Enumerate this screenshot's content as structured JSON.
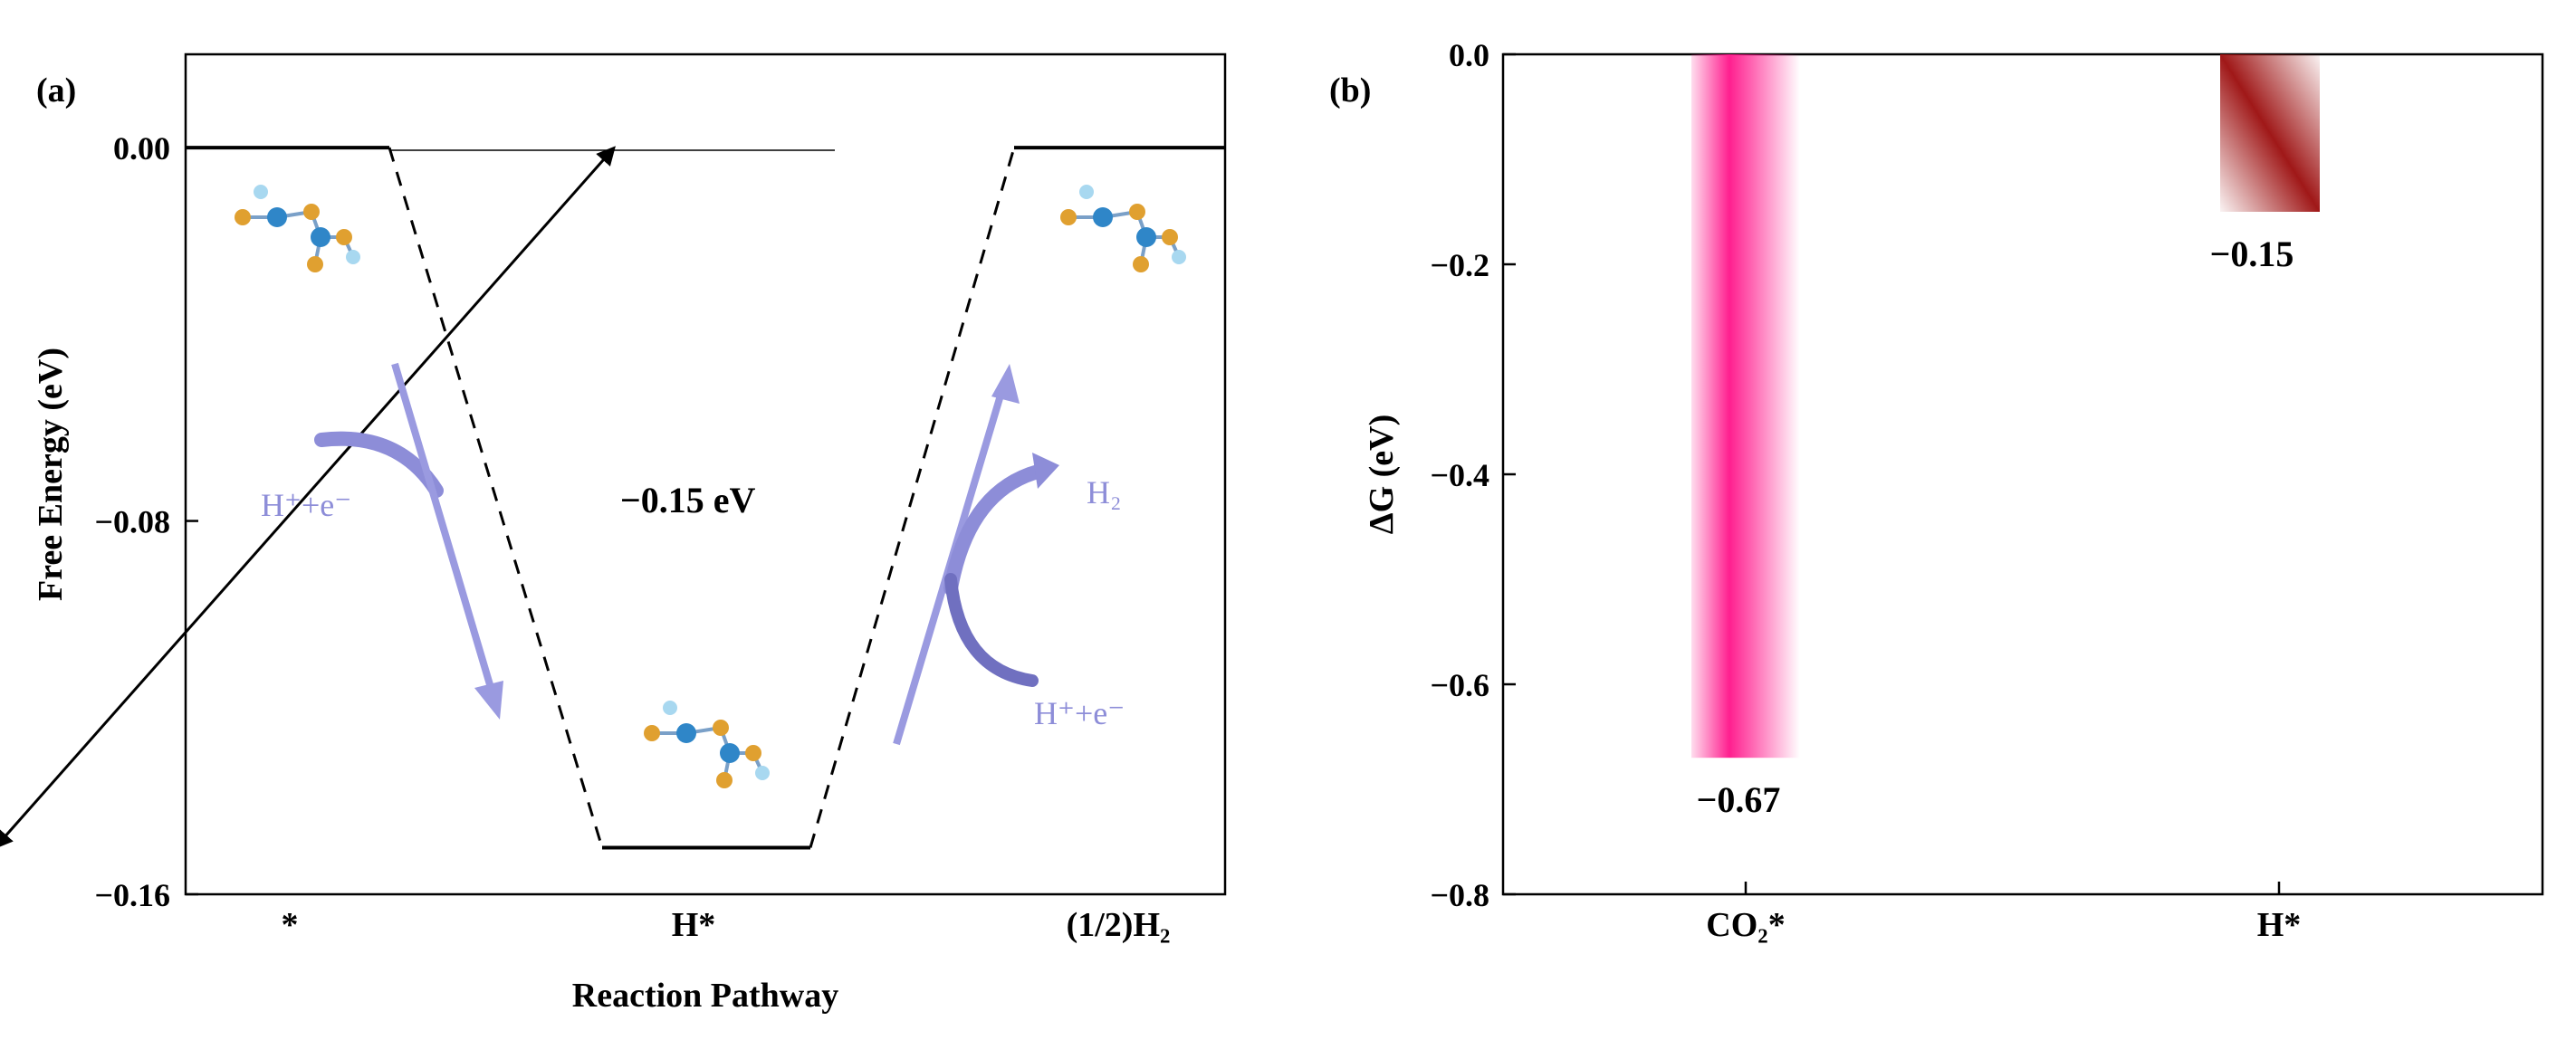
{
  "panel_a": {
    "label": "(a)",
    "arrow_annotation": "−0.15 eV",
    "left_reaction": "H⁺+e⁻",
    "right_reaction_in": "H⁺+e⁻",
    "right_reaction_out": "H₂"
  },
  "panel_b": {
    "label": "(b)"
  },
  "colors": {
    "reaction_arrow": "#9a9ae0",
    "co2_bar": "#ff1f8f",
    "h_bar": "#a01818",
    "atom_gold": "#e0a030",
    "atom_blue": "#2f86c8",
    "atom_light": "#a8d8f0"
  },
  "icons": [
    "molecule-structure-icon"
  ],
  "chart_data": [
    {
      "type": "line",
      "subtype": "free-energy-step-diagram",
      "xlabel": "Reaction Pathway",
      "ylabel": "Free Energy (eV)",
      "categories": [
        "*",
        "H*",
        "(1/2)H₂"
      ],
      "values": [
        0.0,
        -0.15,
        0.0
      ],
      "ylim": [
        -0.16,
        0.02
      ],
      "yticks": [
        0.0,
        -0.08,
        -0.16
      ],
      "ytick_labels": [
        "0.00",
        "−0.08",
        "−0.16"
      ],
      "annotation": "−0.15 eV"
    },
    {
      "type": "bar",
      "xlabel": "",
      "ylabel": "ΔG (eV)",
      "categories": [
        "CO₂*",
        "H*"
      ],
      "values": [
        -0.67,
        -0.15
      ],
      "value_labels": [
        "−0.67",
        "−0.15"
      ],
      "ylim": [
        -0.8,
        0.0
      ],
      "yticks": [
        0.0,
        -0.2,
        -0.4,
        -0.6,
        -0.8
      ],
      "ytick_labels": [
        "0.0",
        "−0.2",
        "−0.4",
        "−0.6",
        "−0.8"
      ]
    }
  ]
}
